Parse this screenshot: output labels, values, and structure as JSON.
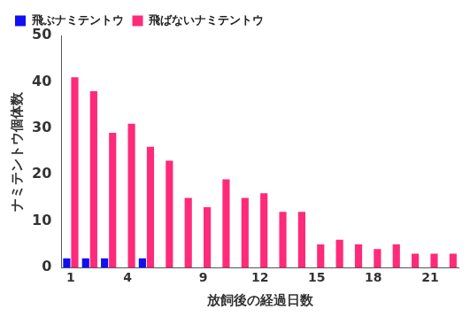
{
  "chart_data": {
    "type": "bar",
    "x_label": "放飼後の経過日数",
    "y_label": "ナミテントウ個体数",
    "categories": [
      "1",
      null,
      null,
      "4",
      null,
      null,
      null,
      "9",
      null,
      null,
      "12",
      null,
      null,
      "15",
      null,
      null,
      "18",
      null,
      null,
      "21",
      null
    ],
    "series": [
      {
        "name": "飛ぶナミテントウ",
        "color": "#1010f0",
        "values": [
          2,
          2,
          2,
          null,
          2,
          null,
          null,
          null,
          null,
          null,
          null,
          null,
          null,
          null,
          null,
          null,
          null,
          null,
          null,
          null,
          null
        ]
      },
      {
        "name": "飛ばないナミテントウ",
        "color": "#ff2a7a",
        "values": [
          41,
          38,
          29,
          31,
          26,
          23,
          15,
          13,
          19,
          15,
          16,
          12,
          12,
          5,
          6,
          5,
          4,
          5,
          3,
          3,
          3
        ]
      }
    ],
    "ylim": [
      0,
      50
    ],
    "yticks": [
      0,
      10,
      20,
      30,
      40,
      50
    ],
    "grid": false,
    "legend": "top-left"
  }
}
